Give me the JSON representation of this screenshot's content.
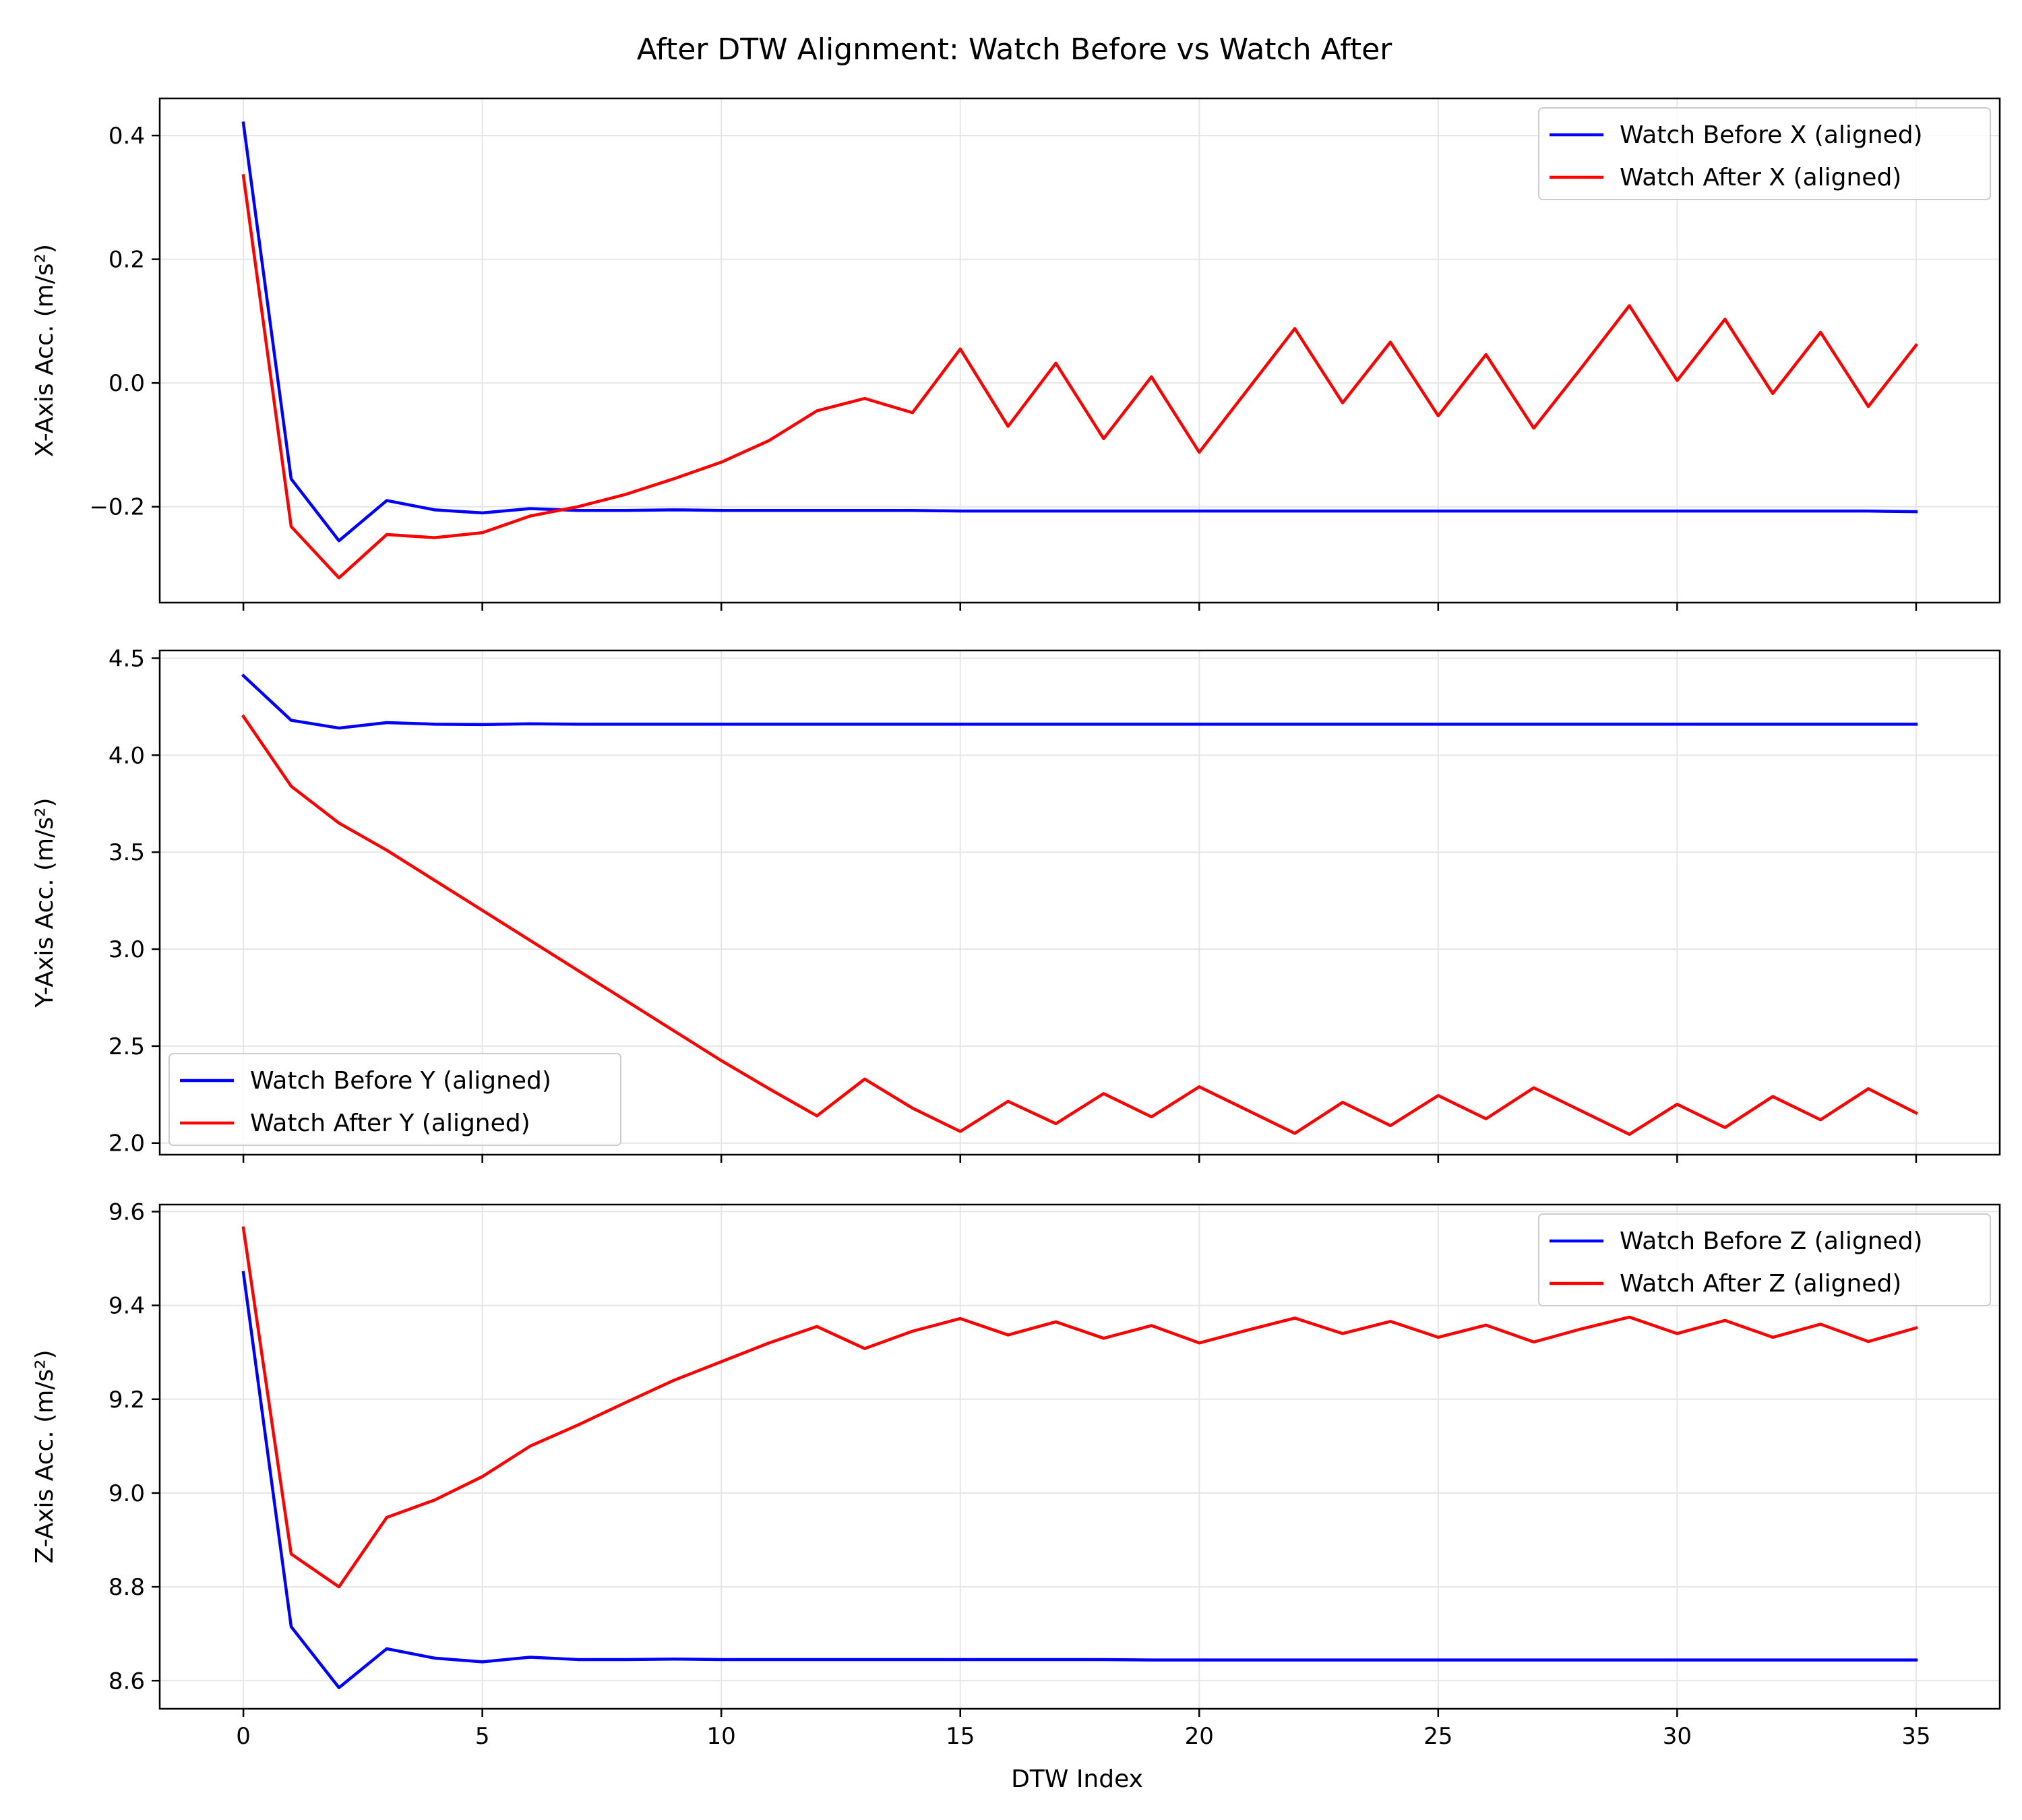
{
  "figure_title": "After DTW Alignment: Watch Before vs Watch After",
  "xlabel": "DTW Index",
  "colors": {
    "before": "#0000ff",
    "after": "#ff0000",
    "grid": "#e6e6e6"
  },
  "chart_data": [
    {
      "type": "line",
      "ylabel": "X-Axis Acc. (m/s²)",
      "xlim": [
        -1.75,
        36.75
      ],
      "ylim": [
        -0.355,
        0.46
      ],
      "yticks": [
        -0.2,
        0.0,
        0.2,
        0.4
      ],
      "yticklabels": [
        "−0.2",
        "0.0",
        "0.2",
        "0.4"
      ],
      "xticks": [
        0,
        5,
        10,
        15,
        20,
        25,
        30,
        35
      ],
      "show_xticklabels": false,
      "grid": true,
      "legend": "top-right",
      "series": [
        {
          "name": "Watch Before X (aligned)",
          "color": "#0000ff",
          "values": [
            0.42,
            -0.155,
            -0.255,
            -0.19,
            -0.205,
            -0.21,
            -0.203,
            -0.206,
            -0.206,
            -0.205,
            -0.206,
            -0.206,
            -0.206,
            -0.206,
            -0.206,
            -0.207,
            -0.207,
            -0.207,
            -0.207,
            -0.207,
            -0.207,
            -0.207,
            -0.207,
            -0.207,
            -0.207,
            -0.207,
            -0.207,
            -0.207,
            -0.207,
            -0.207,
            -0.207,
            -0.207,
            -0.207,
            -0.207,
            -0.207,
            -0.208
          ]
        },
        {
          "name": "Watch After X (aligned)",
          "color": "#ff0000",
          "values": [
            0.335,
            -0.232,
            -0.315,
            -0.245,
            -0.25,
            -0.242,
            -0.215,
            -0.2,
            -0.18,
            -0.155,
            -0.128,
            -0.093,
            -0.045,
            -0.025,
            -0.048,
            0.055,
            -0.07,
            0.032,
            -0.09,
            0.01,
            -0.112,
            -0.012,
            0.088,
            -0.032,
            0.066,
            -0.053,
            0.046,
            -0.073,
            0.025,
            0.125,
            0.004,
            0.103,
            -0.017,
            0.082,
            -0.038,
            0.061
          ]
        }
      ]
    },
    {
      "type": "line",
      "ylabel": "Y-Axis Acc. (m/s²)",
      "xlim": [
        -1.75,
        36.75
      ],
      "ylim": [
        1.94,
        4.54
      ],
      "yticks": [
        2.0,
        2.5,
        3.0,
        3.5,
        4.0,
        4.5
      ],
      "yticklabels": [
        "2.0",
        "2.5",
        "3.0",
        "3.5",
        "4.0",
        "4.5"
      ],
      "xticks": [
        0,
        5,
        10,
        15,
        20,
        25,
        30,
        35
      ],
      "show_xticklabels": false,
      "grid": true,
      "legend": "bottom-left",
      "series": [
        {
          "name": "Watch Before Y (aligned)",
          "color": "#0000ff",
          "values": [
            4.41,
            4.18,
            4.14,
            4.168,
            4.16,
            4.158,
            4.162,
            4.16,
            4.16,
            4.16,
            4.16,
            4.16,
            4.16,
            4.16,
            4.16,
            4.16,
            4.16,
            4.16,
            4.16,
            4.16,
            4.16,
            4.16,
            4.16,
            4.16,
            4.16,
            4.16,
            4.16,
            4.16,
            4.16,
            4.16,
            4.16,
            4.16,
            4.16,
            4.16,
            4.16,
            4.16
          ]
        },
        {
          "name": "Watch After Y (aligned)",
          "color": "#ff0000",
          "values": [
            4.2,
            3.84,
            3.65,
            3.51,
            3.355,
            3.2,
            3.045,
            2.89,
            2.735,
            2.58,
            2.425,
            2.28,
            2.14,
            2.33,
            2.18,
            2.06,
            2.215,
            2.1,
            2.255,
            2.135,
            2.29,
            2.17,
            2.05,
            2.21,
            2.09,
            2.245,
            2.125,
            2.285,
            2.165,
            2.045,
            2.2,
            2.08,
            2.24,
            2.12,
            2.28,
            2.155
          ]
        }
      ]
    },
    {
      "type": "line",
      "ylabel": "Z-Axis Acc. (m/s²)",
      "xlim": [
        -1.75,
        36.75
      ],
      "ylim": [
        8.54,
        9.615
      ],
      "yticks": [
        8.6,
        8.8,
        9.0,
        9.2,
        9.4,
        9.6
      ],
      "yticklabels": [
        "8.6",
        "8.8",
        "9.0",
        "9.2",
        "9.4",
        "9.6"
      ],
      "xticks": [
        0,
        5,
        10,
        15,
        20,
        25,
        30,
        35
      ],
      "xticklabels": [
        "0",
        "5",
        "10",
        "15",
        "20",
        "25",
        "30",
        "35"
      ],
      "show_xticklabels": true,
      "grid": true,
      "legend": "top-right",
      "series": [
        {
          "name": "Watch Before Z (aligned)",
          "color": "#0000ff",
          "values": [
            9.47,
            8.715,
            8.585,
            8.668,
            8.648,
            8.64,
            8.65,
            8.645,
            8.645,
            8.646,
            8.645,
            8.645,
            8.645,
            8.645,
            8.645,
            8.645,
            8.645,
            8.645,
            8.645,
            8.644,
            8.644,
            8.644,
            8.644,
            8.644,
            8.644,
            8.644,
            8.644,
            8.644,
            8.644,
            8.644,
            8.644,
            8.644,
            8.644,
            8.644,
            8.644,
            8.644
          ]
        },
        {
          "name": "Watch After Z (aligned)",
          "color": "#ff0000",
          "values": [
            9.565,
            8.87,
            8.8,
            8.948,
            8.985,
            9.035,
            9.1,
            9.145,
            9.193,
            9.24,
            9.28,
            9.32,
            9.355,
            9.308,
            9.345,
            9.372,
            9.337,
            9.365,
            9.33,
            9.357,
            9.32,
            9.347,
            9.373,
            9.34,
            9.366,
            9.332,
            9.358,
            9.322,
            9.35,
            9.375,
            9.34,
            9.368,
            9.332,
            9.36,
            9.323,
            9.352
          ]
        }
      ]
    }
  ]
}
